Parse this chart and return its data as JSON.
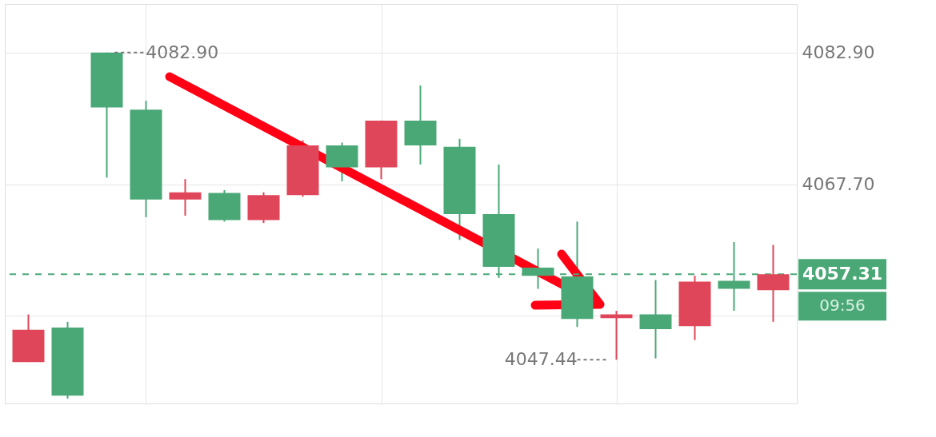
{
  "chart_data": {
    "type": "candlestick",
    "categories": [
      null,
      null,
      null,
      null,
      null,
      null,
      null,
      null,
      null,
      null,
      null,
      null,
      null,
      null,
      null,
      null,
      null,
      null,
      null,
      null
    ],
    "ohlc": [
      [
        4047.18,
        4052.67,
        4047.18,
        4050.9
      ],
      [
        4051.15,
        4051.82,
        4042.96,
        4043.3
      ],
      [
        4082.9,
        4082.9,
        4068.46,
        4076.57
      ],
      [
        4076.31,
        4077.33,
        4063.9,
        4065.93
      ],
      [
        4065.93,
        4068.29,
        4064.07,
        4066.77
      ],
      [
        4066.69,
        4067.02,
        4063.39,
        4063.56
      ],
      [
        4063.56,
        4066.77,
        4063.22,
        4066.43
      ],
      [
        4066.43,
        4072.77,
        4066.26,
        4072.18
      ],
      [
        4072.18,
        4072.51,
        4068.04,
        4069.64
      ],
      [
        4069.64,
        4075.05,
        4068.29,
        4075.05
      ],
      [
        4075.05,
        4079.1,
        4069.98,
        4072.18
      ],
      [
        4072.01,
        4072.94,
        4061.28,
        4064.24
      ],
      [
        4064.24,
        4069.98,
        4056.89,
        4058.16
      ],
      [
        4058.07,
        4060.27,
        4055.63,
        4057.14
      ],
      [
        4057.06,
        4063.39,
        4051.23,
        4052.16
      ],
      [
        4052.25,
        4053.09,
        4047.44,
        4052.67
      ],
      [
        4052.67,
        4056.64,
        4047.6,
        4050.98
      ],
      [
        4051.32,
        4057.14,
        4049.71,
        4056.47
      ],
      [
        4056.55,
        4061.03,
        4053.09,
        4055.63
      ],
      [
        4055.46,
        4060.69,
        4051.82,
        4057.31
      ]
    ],
    "colors": [
      "#e0465a",
      "#4aa877",
      "#4aa877",
      "#4aa877",
      "#e0465a",
      "#4aa877",
      "#e0465a",
      "#e0465a",
      "#4aa877",
      "#e0465a",
      "#4aa877",
      "#4aa877",
      "#4aa877",
      "#4aa877",
      "#4aa877",
      "#e0465a",
      "#4aa877",
      "#e0465a",
      "#4aa877",
      "#e0465a"
    ],
    "ylim": [
      4042.4,
      4088.5
    ],
    "yticks": [
      {
        "value": 4082.9,
        "label": "4082.90"
      },
      {
        "value": 4067.7,
        "label": "4067.70"
      },
      {
        "value": 4052.5,
        "label": null
      }
    ],
    "grid": true,
    "tick_labels": "y",
    "ref_lines": [
      {
        "axis": "y",
        "value": 4057.31,
        "label": "4057.31",
        "color": "#4aa877",
        "line_style": "dashed"
      }
    ],
    "annotations": [
      "4082.90",
      "4047.44",
      "09:56"
    ]
  }
}
